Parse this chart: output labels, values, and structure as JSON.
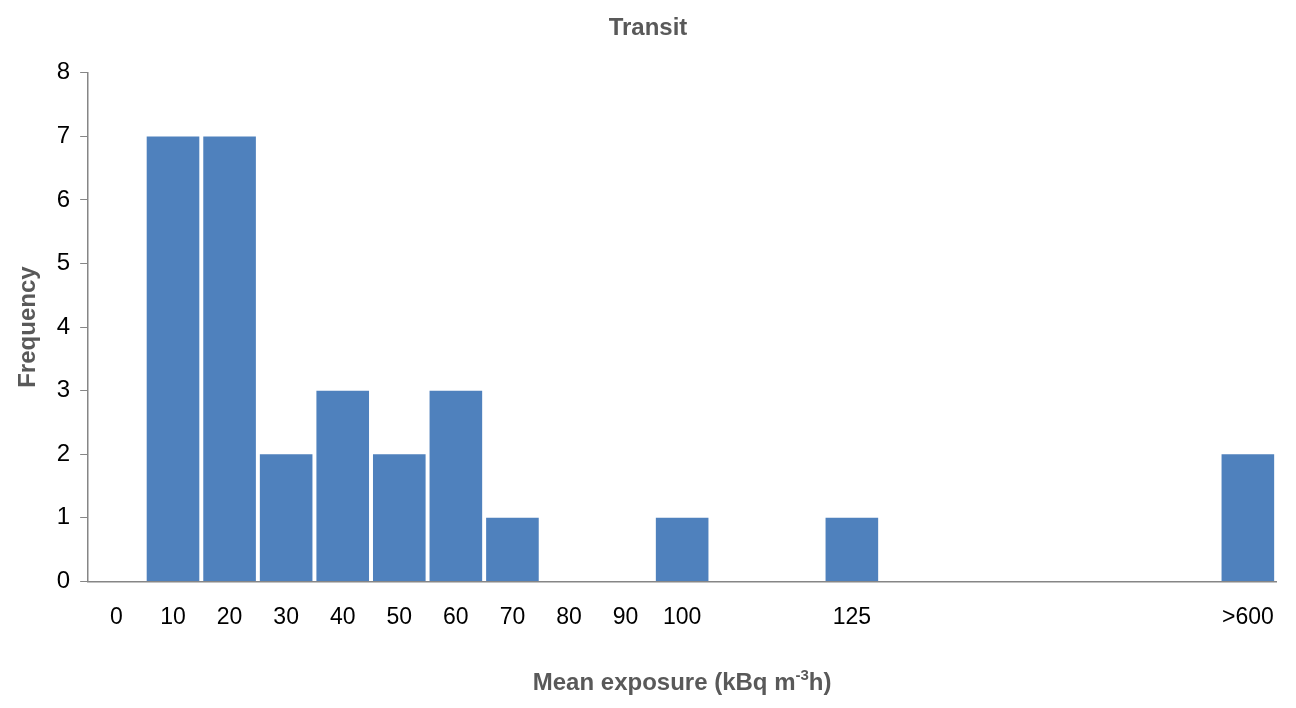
{
  "chart_data": {
    "type": "bar",
    "title": "Transit",
    "xlabel": "Mean exposure (kBq m$^{-3}$h)",
    "ylabel": "Frequency",
    "categories": [
      "0",
      "10",
      "20",
      "30",
      "40",
      "50",
      "60",
      "70",
      "80",
      "90",
      "100",
      null,
      null,
      "125",
      null,
      null,
      null,
      null,
      null,
      null,
      ">600"
    ],
    "values": [
      0,
      7,
      7,
      2,
      3,
      2,
      3,
      1,
      0,
      0,
      1,
      0,
      0,
      1,
      0,
      0,
      0,
      0,
      0,
      0,
      2
    ],
    "color": "#4f81bd",
    "ylim": [
      0,
      8
    ],
    "yticks": [
      0,
      1,
      2,
      3,
      4,
      5,
      6,
      7,
      8
    ],
    "grid": false,
    "legend": false
  }
}
